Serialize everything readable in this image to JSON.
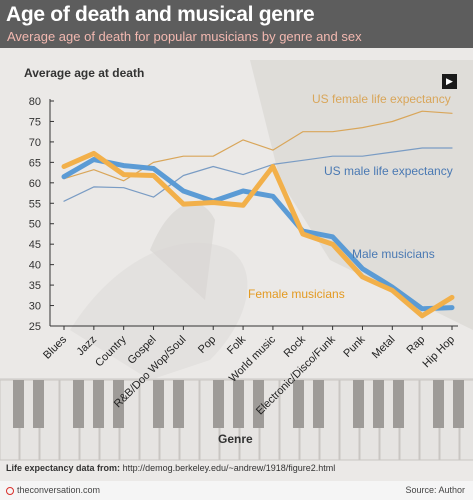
{
  "header": {
    "title": "Age of death and musical genre",
    "subtitle": "Average age of death for popular musicians by genre and sex"
  },
  "chart_data": {
    "type": "line",
    "title": "Age of death and musical genre",
    "subtitle": "Average age of death for popular musicians by genre and sex",
    "ylabel": "Average age at death",
    "xlabel": "Genre",
    "ylim": [
      25,
      80
    ],
    "yticks": [
      25,
      30,
      35,
      40,
      45,
      50,
      55,
      60,
      65,
      70,
      75,
      80
    ],
    "grid": false,
    "categories": [
      "Blues",
      "Jazz",
      "Country",
      "Gospel",
      "R&B/Doo Wop/Soul",
      "Pop",
      "Folk",
      "World music",
      "Rock",
      "Electronic/Disco/Funk",
      "Punk",
      "Metal",
      "Rap",
      "Hip Hop"
    ],
    "series": [
      {
        "name": "Male musicians",
        "color": "#5b9bd5",
        "values": [
          61.5,
          65.7,
          64.2,
          63.5,
          58.0,
          55.5,
          58.0,
          56.7,
          48.2,
          46.8,
          39.0,
          34.5,
          29.2,
          29.5
        ]
      },
      {
        "name": "Female musicians",
        "color": "#f2b04a",
        "values": [
          64.0,
          67.2,
          62.0,
          61.8,
          54.8,
          55.2,
          54.5,
          64.0,
          47.5,
          45.0,
          37.0,
          33.7,
          27.5,
          32.0
        ]
      },
      {
        "name": "US female life expectancy",
        "color": "#d9a65a",
        "values": [
          61.0,
          63.2,
          60.5,
          65.0,
          66.5,
          66.5,
          70.5,
          68.0,
          72.5,
          72.5,
          73.5,
          75.0,
          77.5,
          77.0
        ]
      },
      {
        "name": "US male life expectancy",
        "color": "#7a9cc4",
        "values": [
          55.5,
          59.0,
          58.8,
          56.5,
          61.8,
          64.0,
          62.0,
          64.5,
          65.5,
          66.5,
          66.5,
          67.5,
          68.5,
          68.5
        ]
      }
    ],
    "annotations": [
      {
        "text": "US female life expectancy",
        "color": "#d9a65a"
      },
      {
        "text": "US male life expectancy",
        "color": "#4a79b3"
      },
      {
        "text": "Male musicians",
        "color": "#4a79b3"
      },
      {
        "text": "Female musicians",
        "color": "#e39a22"
      }
    ]
  },
  "footer": {
    "note_label": "Life expectancy data from:",
    "note_url": "http://demog.berkeley.edu/~andrew/1918/figure2.html",
    "brand": "theconversation.com",
    "source": "Source: Author"
  },
  "controls": {
    "expand_icon": "play-arrow-icon"
  }
}
